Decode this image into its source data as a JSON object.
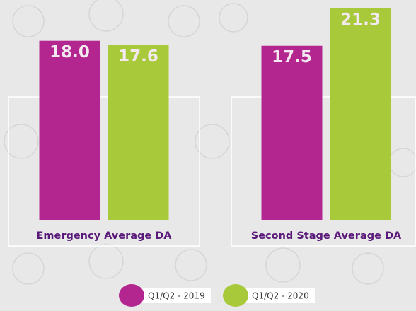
{
  "chart_data": {
    "type": "bar",
    "categories": [
      "Emergency Average DA",
      "Second Stage Average DA"
    ],
    "series": [
      {
        "name": "Q1/Q2 - 2019",
        "color": "#b3268f",
        "values": [
          18,
          17.5
        ],
        "value_labels": [
          "18.0",
          "17.5"
        ]
      },
      {
        "name": "Q1/Q2 - 2020",
        "color": "#a8c93a",
        "values": [
          17.6,
          21.3
        ]
      }
    ],
    "ylim": [
      0,
      22.1
    ]
  }
}
